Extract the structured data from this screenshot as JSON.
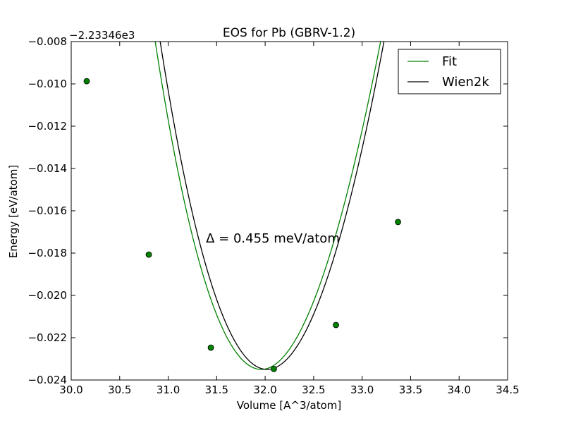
{
  "chart_data": {
    "type": "line",
    "title": "EOS for Pb (GBRV-1.2)",
    "xlabel": "Volume [A^3/atom]",
    "ylabel": "Energy [eV/atom]",
    "y_offset_label": "−2.23346e3",
    "annotation": "Δ = 0.455 meV/atom",
    "xlim": [
      30.0,
      34.5
    ],
    "ylim": [
      -0.024,
      -0.008
    ],
    "x_ticks": [
      "30.0",
      "30.5",
      "31.0",
      "31.5",
      "32.0",
      "32.5",
      "33.0",
      "33.5",
      "34.0",
      "34.5"
    ],
    "y_ticks": [
      "−0.024",
      "−0.022",
      "−0.020",
      "−0.018",
      "−0.016",
      "−0.014",
      "−0.012",
      "−0.010",
      "−0.008"
    ],
    "grid": false,
    "legend_position": "top-right",
    "series": [
      {
        "name": "Fit",
        "color": "#008000",
        "style": "line+markers",
        "points": [
          [
            30.16,
            -0.00987
          ],
          [
            30.8,
            -0.01807
          ],
          [
            31.44,
            -0.02247
          ],
          [
            32.09,
            -0.02348
          ],
          [
            32.73,
            -0.0214
          ],
          [
            33.37,
            -0.01653
          ]
        ],
        "curve": {
          "v0": 31.96,
          "e0": -0.0235,
          "a": 0.01168,
          "b": -0.00117,
          "x_end": 34.03
        }
      },
      {
        "name": "Wien2k",
        "color": "#000000",
        "style": "line",
        "curve": {
          "v0": 32.02,
          "e0": -0.0235,
          "a": 0.01176,
          "b": -0.0009,
          "x_start": 30.16,
          "x_end": 34.1
        }
      }
    ]
  }
}
